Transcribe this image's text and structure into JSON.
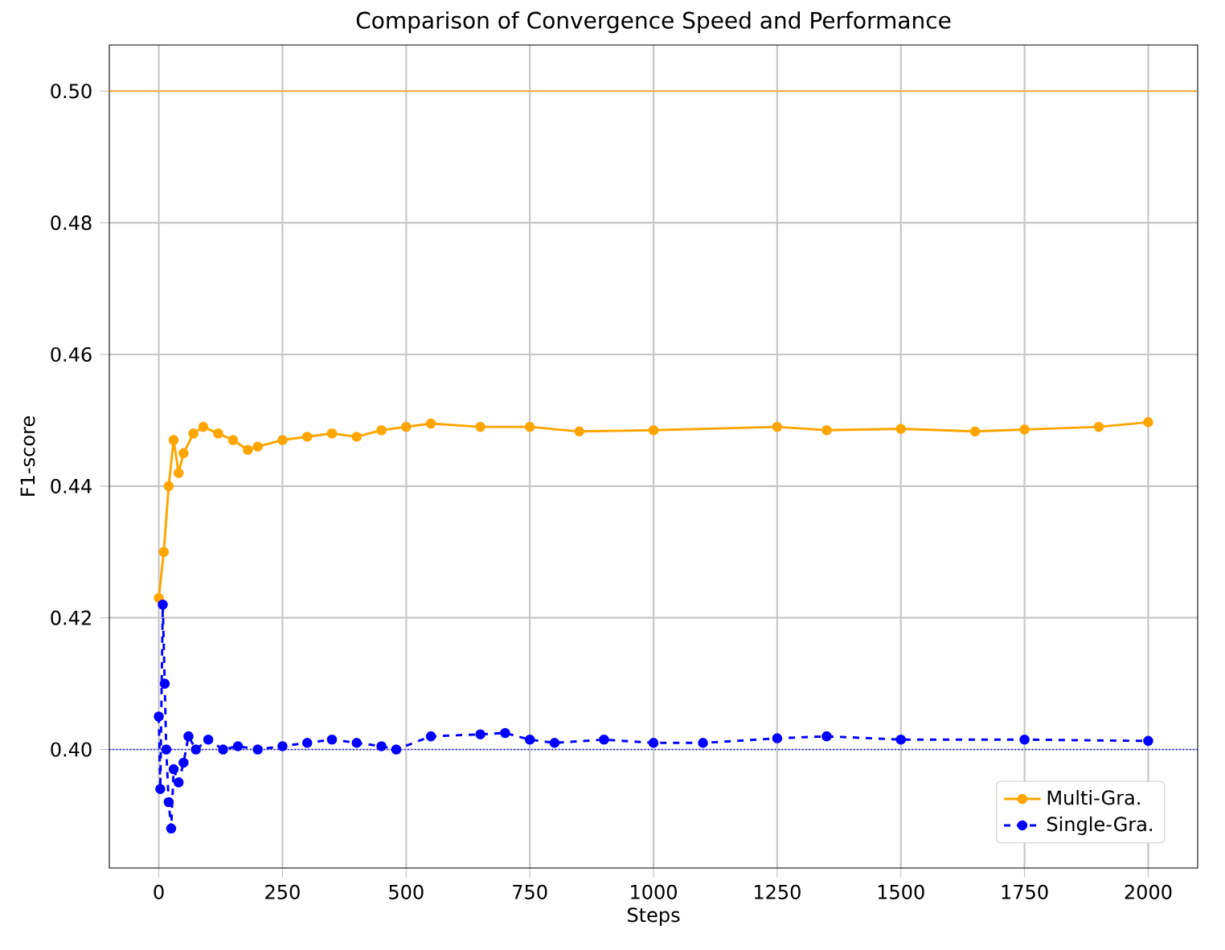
{
  "chart_data": {
    "type": "line",
    "title": "Comparison of Convergence Speed and Performance",
    "xlabel": "Steps",
    "ylabel": "F1-score",
    "xlim": [
      -100,
      2100
    ],
    "ylim": [
      0.382,
      0.507
    ],
    "xticks": [
      0,
      250,
      500,
      750,
      1000,
      1250,
      1500,
      1750,
      2000
    ],
    "yticks": [
      {
        "value": 0.4,
        "label": "0.40"
      },
      {
        "value": 0.42,
        "label": "0.42"
      },
      {
        "value": 0.44,
        "label": "0.44"
      },
      {
        "value": 0.46,
        "label": "0.46"
      },
      {
        "value": 0.48,
        "label": "0.48"
      },
      {
        "value": 0.5,
        "label": "0.50"
      }
    ],
    "grid": true,
    "legend": "bottom right",
    "marker": "circle",
    "series": [
      {
        "name": "Multi-Gra.",
        "color": "#ffa500",
        "line_style": "solid",
        "x": [
          0,
          10,
          20,
          30,
          40,
          50,
          70,
          90,
          120,
          150,
          180,
          200,
          250,
          300,
          350,
          400,
          450,
          500,
          550,
          650,
          750,
          850,
          1000,
          1250,
          1350,
          1500,
          1650,
          1750,
          1900,
          2000
        ],
        "values": [
          0.423,
          0.43,
          0.44,
          0.447,
          0.442,
          0.445,
          0.448,
          0.449,
          0.448,
          0.447,
          0.4455,
          0.446,
          0.447,
          0.4475,
          0.448,
          0.4475,
          0.4485,
          0.449,
          0.4495,
          0.449,
          0.449,
          0.4483,
          0.4485,
          0.449,
          0.4485,
          0.4487,
          0.4483,
          0.4486,
          0.449,
          0.4497
        ]
      },
      {
        "name": "Single-Gra.",
        "color": "#0000ff",
        "line_style": "dashed",
        "x": [
          0,
          3,
          8,
          12,
          15,
          20,
          25,
          30,
          40,
          50,
          60,
          75,
          100,
          130,
          160,
          200,
          250,
          300,
          350,
          400,
          450,
          480,
          550,
          650,
          700,
          750,
          800,
          900,
          1000,
          1100,
          1250,
          1350,
          1500,
          1750,
          2000
        ],
        "values": [
          0.405,
          0.394,
          0.422,
          0.41,
          0.4,
          0.392,
          0.388,
          0.397,
          0.395,
          0.398,
          0.402,
          0.4,
          0.4015,
          0.4,
          0.4005,
          0.4,
          0.4005,
          0.401,
          0.4015,
          0.401,
          0.4005,
          0.4,
          0.402,
          0.4023,
          0.4025,
          0.4015,
          0.401,
          0.4015,
          0.401,
          0.401,
          0.4017,
          0.402,
          0.4015,
          0.4015,
          0.4013
        ]
      }
    ],
    "ref_lines": [
      {
        "axis": "y",
        "value": 0.5,
        "color": "#ffa500",
        "line_style": "solid"
      },
      {
        "axis": "y",
        "value": 0.4,
        "color": "#0000ff",
        "line_style": "dotted"
      }
    ]
  }
}
